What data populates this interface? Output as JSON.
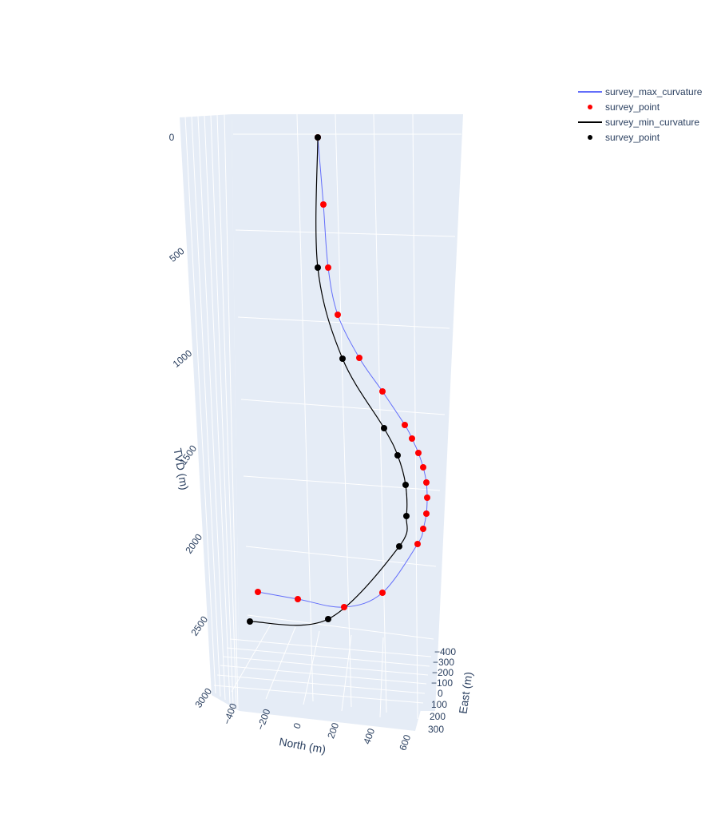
{
  "chart_data": {
    "type": "line",
    "title": "",
    "axes": {
      "x": {
        "label": "North (m)",
        "ticks": [
          "−400",
          "−200",
          "0",
          "200",
          "400",
          "600"
        ]
      },
      "y": {
        "label": "East (m)",
        "ticks": [
          "−400",
          "−300",
          "−200",
          "−100",
          "0",
          "100",
          "200",
          "300"
        ]
      },
      "z": {
        "label": "TVD (m)",
        "ticks": [
          "0",
          "500",
          "1000",
          "1500",
          "2000",
          "2500",
          "3000"
        ],
        "reversed": true
      }
    },
    "grid": true,
    "legend_position": "top-right",
    "colors": {
      "max_curvature_line": "#636efa",
      "max_curvature_points": "#ff0000",
      "min_curvature_line": "#000000",
      "min_curvature_points": "#000000",
      "scene_background": "#e5ecf6",
      "grid": "#ffffff",
      "text": "#2a3f5f"
    },
    "series": [
      {
        "name": "survey_max_curvature",
        "kind": "line"
      },
      {
        "name": "survey_point",
        "kind": "markers",
        "tvd_approx": [
          0,
          250,
          500,
          700,
          880,
          1050,
          1200,
          1280,
          1360,
          1440,
          1520,
          1600,
          1680,
          1760,
          1840,
          2350,
          2480,
          2560,
          2620
        ]
      },
      {
        "name": "survey_min_curvature",
        "kind": "line"
      },
      {
        "name": "survey_point",
        "kind": "markers",
        "tvd_approx": [
          0,
          500,
          900,
          1300,
          1440,
          1580,
          1720,
          1900,
          2480,
          2500
        ]
      }
    ]
  }
}
